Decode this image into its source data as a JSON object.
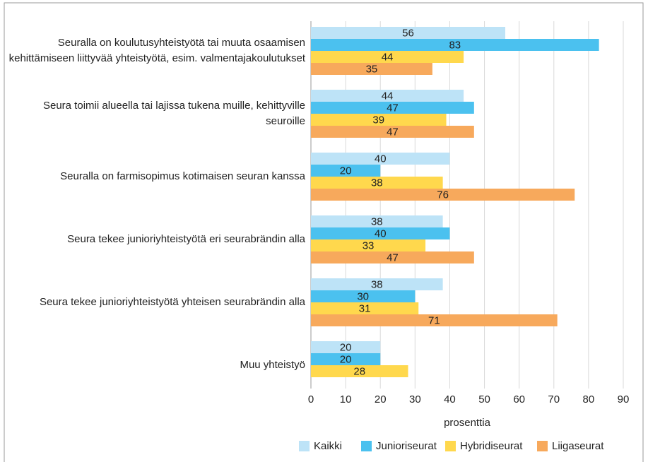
{
  "chart_data": {
    "type": "barh",
    "categories": [
      "Seuralla on koulutusyhteistyötä tai muuta osaamisen kehittämiseen liittyvää yhteistyötä, esim. valmentajakoulutukset",
      "Seura toimii alueella tai lajissa tukena muille, kehittyville seuroille",
      "Seuralla on farmisopimus kotimaisen seuran kanssa",
      "Seura tekee junioriyhteistyötä eri seurabrändin alla",
      "Seura tekee junioriyhteistyötä yhteisen seurabrändin alla",
      "Muu yhteistyö"
    ],
    "series": [
      {
        "name": "Kaikki",
        "color": "#bde3f7",
        "values": [
          56,
          44,
          40,
          38,
          38,
          20
        ]
      },
      {
        "name": "Junioriseurat",
        "color": "#4bc1ef",
        "values": [
          83,
          47,
          20,
          40,
          30,
          20
        ]
      },
      {
        "name": "Hybridiseurat",
        "color": "#ffd84d",
        "values": [
          44,
          39,
          38,
          33,
          31,
          28
        ]
      },
      {
        "name": "Liigaseurat",
        "color": "#f7a95c",
        "values": [
          35,
          47,
          76,
          47,
          71,
          null
        ]
      }
    ],
    "xlabel": "prosenttia",
    "xlim": [
      0,
      90
    ],
    "xticks": [
      0,
      10,
      20,
      30,
      40,
      50,
      60,
      70,
      80,
      90
    ],
    "grid": true,
    "legend": "bottom"
  }
}
